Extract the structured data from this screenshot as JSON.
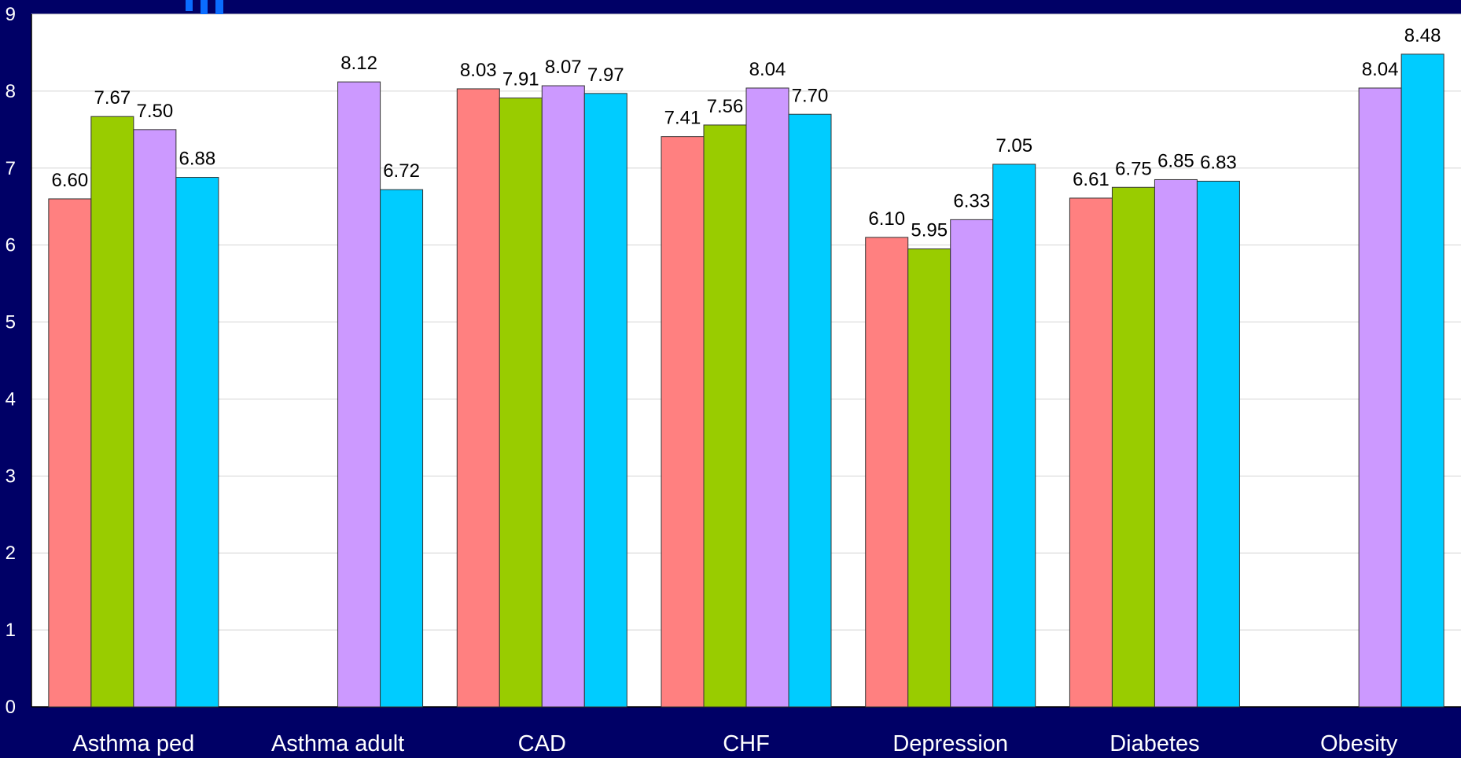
{
  "chart_data": {
    "type": "bar",
    "categories": [
      "Asthma ped",
      "Asthma adult",
      "CAD",
      "CHF",
      "Depression",
      "Diabetes",
      "Obesity"
    ],
    "series": [
      {
        "color": "#ff8080",
        "values": [
          6.6,
          null,
          8.03,
          7.41,
          6.1,
          6.61,
          null
        ]
      },
      {
        "color": "#99cc00",
        "values": [
          7.67,
          null,
          7.91,
          7.56,
          5.95,
          6.75,
          null
        ]
      },
      {
        "color": "#cc99ff",
        "values": [
          7.5,
          8.12,
          8.07,
          8.04,
          6.33,
          6.85,
          8.04
        ]
      },
      {
        "color": "#00ccff",
        "values": [
          6.88,
          6.72,
          7.97,
          7.7,
          7.05,
          6.83,
          8.48
        ]
      }
    ],
    "ylim": [
      0,
      9
    ],
    "yticks": [
      "0",
      "1",
      "2",
      "3",
      "4",
      "5",
      "6",
      "7",
      "8",
      "9"
    ],
    "grid": true,
    "plot_background": "#ffffff",
    "page_background": "#000066"
  }
}
